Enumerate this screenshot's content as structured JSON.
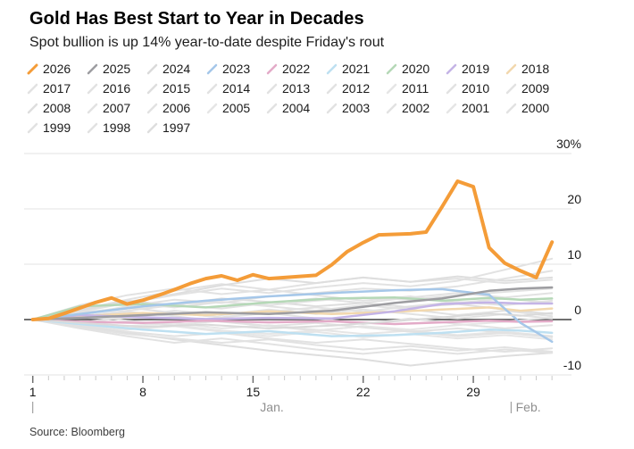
{
  "header": {
    "title": "Gold Has Best Start to Year in Decades",
    "subtitle": "Spot bullion is up 14% year-to-date despite Friday's rout"
  },
  "source_note": "Source: Bloomberg",
  "chart_data": {
    "type": "line",
    "title": "Gold Has Best Start to Year in Decades",
    "subtitle": "Spot bullion is up 14% year-to-date despite Friday's rout",
    "x_axis": {
      "unit": "calendar day of year (Jan 1 = 1)",
      "day_range": [
        1,
        34
      ],
      "major_tick_days": [
        1,
        8,
        15,
        22,
        29
      ],
      "major_tick_labels": [
        "1",
        "8",
        "15",
        "22",
        "29"
      ],
      "minor_ticks_daily": true,
      "month_markers": [
        {
          "label": "Jan.",
          "divider_day": 1,
          "label_day": 16.2,
          "align": "middle"
        },
        {
          "label": "Feb.",
          "divider_day": 31.4,
          "label_day": 31.7,
          "align": "start"
        }
      ]
    },
    "y_axis": {
      "unit": "percent change year-to-date",
      "range": [
        -10,
        30
      ],
      "ticks": [
        {
          "value": 30,
          "label": "30%"
        },
        {
          "value": 20,
          "label": "20"
        },
        {
          "value": 10,
          "label": "10"
        },
        {
          "value": 0,
          "label": "0",
          "dark_baseline": true
        },
        {
          "value": -10,
          "label": "-10"
        }
      ],
      "grid": true,
      "labels_position": "right"
    },
    "axis_colors": {
      "grid": "#E3E3E3",
      "zero_line": "#6F6F6F",
      "tick_minor": "#C9C9C9",
      "tick_major": "#6F6F6F",
      "day_label": "#1A1A1A",
      "month_label": "#8F8F8F",
      "y_label": "#1A1A1A"
    },
    "legend_position": "top",
    "series": [
      {
        "name": "2026",
        "color": "#F49C38",
        "width": 4,
        "x": [
          1,
          2,
          3,
          4,
          5,
          6,
          7,
          8,
          9,
          10,
          11,
          12,
          13,
          14,
          15,
          16,
          17,
          18,
          19,
          20,
          21,
          22,
          23,
          24,
          25,
          26,
          27,
          28,
          29,
          30,
          31,
          32,
          33,
          34
        ],
        "y": [
          0,
          0.2,
          1.1,
          2.1,
          3.1,
          3.9,
          2.8,
          3.5,
          4.4,
          5.4,
          6.5,
          7.4,
          7.9,
          7.1,
          8.1,
          7.4,
          7.6,
          7.8,
          8.0,
          9.9,
          12.3,
          13.9,
          15.3,
          15.4,
          15.5,
          15.8,
          20.3,
          25.0,
          24.0,
          13.0,
          10.2,
          8.8,
          7.6,
          14.0
        ]
      },
      {
        "name": "2025",
        "color": "#9D9DA1",
        "width": 2.5,
        "x": [
          1,
          4,
          8,
          12,
          16,
          20,
          24,
          27,
          30,
          32,
          34
        ],
        "y": [
          0,
          0.3,
          0.8,
          1.3,
          1.0,
          1.6,
          3.0,
          3.8,
          5.2,
          5.6,
          5.8
        ]
      },
      {
        "name": "2024",
        "color": "#DADADA",
        "width": 2,
        "x": [
          1,
          4,
          8,
          12,
          16,
          20,
          24,
          27,
          30,
          32,
          34
        ],
        "y": [
          0,
          -0.6,
          -1.3,
          -0.9,
          -1.6,
          -1.1,
          -0.3,
          0.4,
          1.1,
          0.7,
          1.2
        ]
      },
      {
        "name": "2023",
        "color": "#A5C7E9",
        "width": 2.5,
        "x": [
          1,
          4,
          8,
          12,
          16,
          20,
          24,
          27,
          30,
          32,
          34
        ],
        "y": [
          0,
          1.0,
          2.4,
          3.4,
          4.2,
          4.8,
          5.3,
          5.5,
          4.5,
          -0.6,
          -4.0
        ]
      },
      {
        "name": "2022",
        "color": "#E3ABC8",
        "width": 2.5,
        "x": [
          1,
          4,
          8,
          12,
          16,
          20,
          24,
          27,
          30,
          32,
          34
        ],
        "y": [
          0,
          -0.4,
          -0.6,
          -0.2,
          -0.5,
          -0.3,
          -0.8,
          -0.5,
          -0.2,
          -0.4,
          -0.3
        ]
      },
      {
        "name": "2021",
        "color": "#BEE0F1",
        "width": 2.5,
        "x": [
          1,
          4,
          8,
          12,
          16,
          20,
          24,
          27,
          30,
          32,
          34
        ],
        "y": [
          0,
          -0.8,
          -1.8,
          -2.6,
          -2.1,
          -3.0,
          -2.8,
          -2.4,
          -1.8,
          -2.0,
          -2.4
        ]
      },
      {
        "name": "2020",
        "color": "#B5D8B7",
        "width": 2.5,
        "x": [
          1,
          4,
          8,
          12,
          16,
          20,
          24,
          27,
          30,
          32,
          34
        ],
        "y": [
          0,
          2.4,
          2.8,
          2.2,
          3.1,
          3.8,
          4.0,
          3.4,
          3.9,
          3.6,
          3.8
        ]
      },
      {
        "name": "2019",
        "color": "#C4B4E6",
        "width": 2.5,
        "x": [
          1,
          4,
          8,
          12,
          16,
          20,
          24,
          27,
          30,
          32,
          34
        ],
        "y": [
          0,
          0.8,
          0.4,
          0.1,
          0.3,
          0.2,
          1.5,
          2.8,
          3.1,
          2.9,
          2.9
        ]
      },
      {
        "name": "2018",
        "color": "#F2D8AE",
        "width": 2.5,
        "x": [
          1,
          4,
          8,
          12,
          16,
          20,
          24,
          27,
          30,
          32,
          34
        ],
        "y": [
          0,
          0.6,
          1.2,
          0.8,
          1.5,
          1.0,
          1.4,
          1.8,
          2.2,
          1.6,
          2.0
        ]
      },
      {
        "name": "2017",
        "color": "#E2E2E2",
        "width": 2,
        "x": [
          1,
          4,
          7,
          10,
          13,
          16,
          19,
          22,
          25,
          28,
          31,
          34
        ],
        "y": [
          0,
          1.2,
          2.0,
          2.8,
          3.2,
          2.6,
          3.4,
          4.0,
          3.6,
          4.4,
          5.0,
          5.6
        ]
      },
      {
        "name": "2016",
        "color": "#E2E2E2",
        "width": 2,
        "x": [
          1,
          4,
          7,
          10,
          13,
          16,
          19,
          22,
          25,
          28,
          31,
          34
        ],
        "y": [
          0,
          0.8,
          2.4,
          3.6,
          3.0,
          4.2,
          4.8,
          5.6,
          5.2,
          6.0,
          7.4,
          8.8
        ]
      },
      {
        "name": "2015",
        "color": "#DEDEDE",
        "width": 2,
        "x": [
          1,
          4,
          7,
          10,
          13,
          16,
          19,
          22,
          25,
          28,
          31,
          34
        ],
        "y": [
          0,
          1.8,
          3.4,
          2.6,
          3.8,
          3.2,
          2.4,
          3.0,
          2.2,
          2.8,
          1.8,
          1.0
        ]
      },
      {
        "name": "2014",
        "color": "#E2E2E2",
        "width": 2,
        "x": [
          1,
          4,
          7,
          10,
          13,
          16,
          19,
          22,
          25,
          28,
          31,
          34
        ],
        "y": [
          0,
          -1.0,
          -2.2,
          -3.0,
          -2.4,
          -3.4,
          -4.2,
          -3.6,
          -4.4,
          -5.2,
          -5.8,
          -5.2
        ]
      },
      {
        "name": "2013",
        "color": "#E2E2E2",
        "width": 2,
        "x": [
          1,
          4,
          7,
          10,
          13,
          16,
          19,
          22,
          25,
          28,
          31,
          34
        ],
        "y": [
          0,
          0.6,
          1.4,
          0.6,
          -0.4,
          -1.2,
          -0.6,
          -1.4,
          -2.2,
          -1.6,
          -2.4,
          -3.0
        ]
      },
      {
        "name": "2012",
        "color": "#E2E2E2",
        "width": 2,
        "x": [
          1,
          4,
          7,
          10,
          13,
          16,
          19,
          22,
          25,
          28,
          31,
          34
        ],
        "y": [
          0,
          1.4,
          3.0,
          4.4,
          5.6,
          4.8,
          5.8,
          6.6,
          6.0,
          7.0,
          9.0,
          11.0
        ]
      },
      {
        "name": "2011",
        "color": "#E6E6E6",
        "width": 2,
        "x": [
          1,
          4,
          7,
          10,
          13,
          16,
          19,
          22,
          25,
          28,
          31,
          34
        ],
        "y": [
          0,
          -0.8,
          -1.6,
          -1.0,
          -2.0,
          -2.6,
          -2.0,
          -1.2,
          -1.8,
          -1.0,
          -0.4,
          0.4
        ]
      },
      {
        "name": "2010",
        "color": "#E2E2E2",
        "width": 2,
        "x": [
          1,
          4,
          7,
          10,
          13,
          16,
          19,
          22,
          25,
          28,
          31,
          34
        ],
        "y": [
          0,
          -1.4,
          -2.6,
          -3.4,
          -4.2,
          -3.6,
          -4.6,
          -5.4,
          -4.8,
          -5.6,
          -5.0,
          -5.8
        ]
      },
      {
        "name": "2009",
        "color": "#E2E2E2",
        "width": 2,
        "x": [
          1,
          4,
          7,
          10,
          13,
          16,
          19,
          22,
          25,
          28,
          31,
          34
        ],
        "y": [
          0,
          2.6,
          4.4,
          5.6,
          4.6,
          5.4,
          4.4,
          3.4,
          4.2,
          3.0,
          3.8,
          3.0
        ]
      },
      {
        "name": "2008",
        "color": "#DEDEDE",
        "width": 2,
        "x": [
          1,
          4,
          7,
          10,
          13,
          16,
          19,
          22,
          25,
          28,
          31,
          34
        ],
        "y": [
          0,
          1.6,
          3.2,
          4.6,
          6.2,
          7.4,
          6.6,
          7.6,
          6.8,
          7.8,
          7.0,
          7.6
        ]
      },
      {
        "name": "2007",
        "color": "#E2E2E2",
        "width": 2,
        "x": [
          1,
          4,
          7,
          10,
          13,
          16,
          19,
          22,
          25,
          28,
          31,
          34
        ],
        "y": [
          0,
          -0.6,
          0.4,
          1.2,
          0.4,
          1.4,
          2.2,
          1.4,
          2.4,
          3.2,
          2.6,
          3.4
        ]
      },
      {
        "name": "2006",
        "color": "#E2E2E2",
        "width": 2,
        "x": [
          1,
          4,
          7,
          10,
          13,
          16,
          19,
          22,
          25,
          28,
          31,
          34
        ],
        "y": [
          0,
          1.8,
          3.6,
          5.2,
          6.4,
          5.4,
          6.6,
          7.6,
          6.8,
          7.4,
          6.6,
          7.2
        ]
      },
      {
        "name": "2005",
        "color": "#E6E6E6",
        "width": 2,
        "x": [
          1,
          4,
          7,
          10,
          13,
          16,
          19,
          22,
          25,
          28,
          31,
          34
        ],
        "y": [
          0,
          -0.8,
          -1.8,
          -1.2,
          -2.2,
          -3.0,
          -2.2,
          -3.2,
          -2.6,
          -3.4,
          -2.8,
          -3.6
        ]
      },
      {
        "name": "2004",
        "color": "#E2E2E2",
        "width": 2,
        "x": [
          1,
          4,
          7,
          10,
          13,
          16,
          19,
          22,
          25,
          28,
          31,
          34
        ],
        "y": [
          0,
          0.8,
          -0.2,
          -1.0,
          -0.2,
          -1.2,
          -2.0,
          -1.2,
          -2.2,
          -3.0,
          -2.4,
          -3.2
        ]
      },
      {
        "name": "2003",
        "color": "#E2E2E2",
        "width": 2,
        "x": [
          1,
          4,
          7,
          10,
          13,
          16,
          19,
          22,
          25,
          28,
          31,
          34
        ],
        "y": [
          0,
          1.6,
          3.0,
          2.2,
          3.2,
          2.4,
          1.6,
          2.6,
          1.8,
          0.8,
          1.6,
          0.6
        ]
      },
      {
        "name": "2002",
        "color": "#E2E2E2",
        "width": 2,
        "x": [
          1,
          4,
          7,
          10,
          13,
          16,
          19,
          22,
          25,
          28,
          31,
          34
        ],
        "y": [
          0,
          0.6,
          1.6,
          2.6,
          2.0,
          3.0,
          3.8,
          3.0,
          4.0,
          4.8,
          4.0,
          4.8
        ]
      },
      {
        "name": "2001",
        "color": "#E6E6E6",
        "width": 2,
        "x": [
          1,
          4,
          7,
          10,
          13,
          16,
          19,
          22,
          25,
          28,
          31,
          34
        ],
        "y": [
          0,
          -0.4,
          -1.2,
          -0.6,
          -1.6,
          -1.0,
          -1.8,
          -2.6,
          -2.0,
          -2.8,
          -2.2,
          -3.0
        ]
      },
      {
        "name": "2000",
        "color": "#E2E2E2",
        "width": 2,
        "x": [
          1,
          4,
          7,
          10,
          13,
          16,
          19,
          22,
          25,
          28,
          31,
          34
        ],
        "y": [
          0,
          1.2,
          2.2,
          1.2,
          0.4,
          1.2,
          0.2,
          -0.8,
          0.2,
          -0.8,
          -1.6,
          -1.0
        ]
      },
      {
        "name": "1999",
        "color": "#E2E2E2",
        "width": 2,
        "x": [
          1,
          4,
          7,
          10,
          13,
          16,
          19,
          22,
          25,
          28,
          31,
          34
        ],
        "y": [
          0,
          -0.6,
          0.6,
          1.6,
          0.8,
          1.8,
          1.0,
          1.8,
          1.0,
          0.2,
          1.0,
          0.2
        ]
      },
      {
        "name": "1998",
        "color": "#E2E2E2",
        "width": 2,
        "x": [
          1,
          4,
          7,
          10,
          13,
          16,
          19,
          22,
          25,
          28,
          31,
          34
        ],
        "y": [
          0,
          -1.6,
          -3.0,
          -4.2,
          -3.4,
          -4.4,
          -5.4,
          -6.2,
          -5.4,
          -6.2,
          -5.4,
          -6.0
        ]
      },
      {
        "name": "1997",
        "color": "#DEDEDE",
        "width": 2,
        "x": [
          1,
          4,
          7,
          10,
          13,
          16,
          19,
          22,
          25,
          28,
          31,
          34
        ],
        "y": [
          0,
          -1.2,
          -2.4,
          -3.6,
          -4.6,
          -5.6,
          -6.4,
          -7.2,
          -8.3,
          -7.4,
          -6.6,
          -6.0
        ]
      }
    ]
  }
}
